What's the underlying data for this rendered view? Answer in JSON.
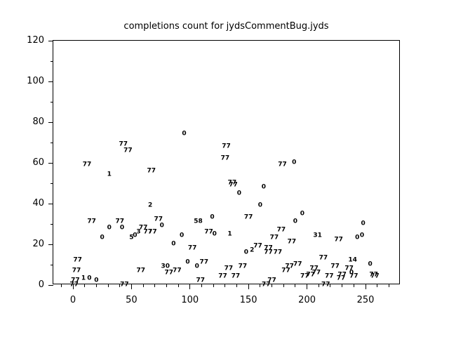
{
  "colors": {
    "background": "#ffffff",
    "foreground": "#000000"
  },
  "chart_data": {
    "type": "scatter",
    "title": "completions count for jydsCommentBug.jyds",
    "xlabel": "",
    "ylabel": "",
    "marker_style": "numeric-text-label",
    "grid": false,
    "legend": false,
    "xlim": [
      -17,
      280
    ],
    "ylim": [
      0,
      120
    ],
    "x_major_ticks": [
      0,
      50,
      100,
      150,
      200,
      250
    ],
    "x_minor_ticks": [
      -10,
      10,
      20,
      30,
      40,
      60,
      70,
      80,
      90,
      110,
      120,
      130,
      140,
      160,
      170,
      180,
      190,
      210,
      220,
      230,
      240,
      260,
      270
    ],
    "y_major_ticks": [
      0,
      20,
      40,
      60,
      80,
      100,
      120
    ],
    "y_minor_ticks": [
      10,
      30,
      50,
      70,
      90,
      110
    ],
    "points": [
      {
        "x": 43,
        "y": 69,
        "label": "77"
      },
      {
        "x": 47,
        "y": 66,
        "label": "77"
      },
      {
        "x": 12,
        "y": 59,
        "label": "77"
      },
      {
        "x": 31,
        "y": 54,
        "label": "1"
      },
      {
        "x": 67,
        "y": 56,
        "label": "77"
      },
      {
        "x": 66,
        "y": 39,
        "label": "2"
      },
      {
        "x": 16,
        "y": 31,
        "label": "77"
      },
      {
        "x": 40,
        "y": 31,
        "label": "77"
      },
      {
        "x": 31,
        "y": 28,
        "label": "0"
      },
      {
        "x": 42,
        "y": 28,
        "label": "0"
      },
      {
        "x": 73,
        "y": 32,
        "label": "77"
      },
      {
        "x": 76,
        "y": 29,
        "label": "0"
      },
      {
        "x": 60,
        "y": 28,
        "label": "77"
      },
      {
        "x": 64,
        "y": 26,
        "label": "77"
      },
      {
        "x": 68,
        "y": 26,
        "label": "77"
      },
      {
        "x": 56,
        "y": 26,
        "label": "3"
      },
      {
        "x": 53,
        "y": 24,
        "label": "0"
      },
      {
        "x": 50,
        "y": 23,
        "label": "5"
      },
      {
        "x": 25,
        "y": 23,
        "label": "0"
      },
      {
        "x": 4,
        "y": 12,
        "label": "77"
      },
      {
        "x": 3,
        "y": 7,
        "label": "77"
      },
      {
        "x": 9,
        "y": 3,
        "label": "1"
      },
      {
        "x": 14,
        "y": 3,
        "label": "0"
      },
      {
        "x": 20,
        "y": 2,
        "label": "0"
      },
      {
        "x": 2,
        "y": 2,
        "label": "77"
      },
      {
        "x": 1,
        "y": 0,
        "label": "77"
      },
      {
        "x": 44,
        "y": 0,
        "label": "77"
      },
      {
        "x": 58,
        "y": 7,
        "label": "77"
      },
      {
        "x": 79,
        "y": 9,
        "label": "30"
      },
      {
        "x": 82,
        "y": 6,
        "label": "77"
      },
      {
        "x": 95,
        "y": 74,
        "label": "0"
      },
      {
        "x": 131,
        "y": 68,
        "label": "77"
      },
      {
        "x": 130,
        "y": 62,
        "label": "77"
      },
      {
        "x": 179,
        "y": 59,
        "label": "77"
      },
      {
        "x": 189,
        "y": 60,
        "label": "0"
      },
      {
        "x": 136,
        "y": 50,
        "label": "77"
      },
      {
        "x": 137,
        "y": 49,
        "label": "77"
      },
      {
        "x": 142,
        "y": 45,
        "label": "0"
      },
      {
        "x": 163,
        "y": 48,
        "label": "0"
      },
      {
        "x": 160,
        "y": 39,
        "label": "0"
      },
      {
        "x": 119,
        "y": 33,
        "label": "0"
      },
      {
        "x": 107,
        "y": 31,
        "label": "58"
      },
      {
        "x": 150,
        "y": 33,
        "label": "77"
      },
      {
        "x": 116,
        "y": 26,
        "label": "77"
      },
      {
        "x": 121,
        "y": 25,
        "label": "0"
      },
      {
        "x": 134,
        "y": 25,
        "label": "1"
      },
      {
        "x": 93,
        "y": 24,
        "label": "0"
      },
      {
        "x": 86,
        "y": 20,
        "label": "0"
      },
      {
        "x": 102,
        "y": 18,
        "label": "77"
      },
      {
        "x": 178,
        "y": 27,
        "label": "77"
      },
      {
        "x": 172,
        "y": 23,
        "label": "77"
      },
      {
        "x": 158,
        "y": 19,
        "label": "77"
      },
      {
        "x": 153,
        "y": 17,
        "label": "2"
      },
      {
        "x": 148,
        "y": 16,
        "label": "0"
      },
      {
        "x": 167,
        "y": 18,
        "label": "77"
      },
      {
        "x": 167,
        "y": 16,
        "label": "77"
      },
      {
        "x": 175,
        "y": 16,
        "label": "77"
      },
      {
        "x": 98,
        "y": 11,
        "label": "0"
      },
      {
        "x": 112,
        "y": 11,
        "label": "77"
      },
      {
        "x": 106,
        "y": 9,
        "label": "0"
      },
      {
        "x": 133,
        "y": 8,
        "label": "77"
      },
      {
        "x": 145,
        "y": 9,
        "label": "77"
      },
      {
        "x": 89,
        "y": 7,
        "label": "77"
      },
      {
        "x": 128,
        "y": 4,
        "label": "77"
      },
      {
        "x": 139,
        "y": 4,
        "label": "77"
      },
      {
        "x": 109,
        "y": 2,
        "label": "77"
      },
      {
        "x": 170,
        "y": 2,
        "label": "77"
      },
      {
        "x": 165,
        "y": 0,
        "label": "77"
      },
      {
        "x": 196,
        "y": 35,
        "label": "0"
      },
      {
        "x": 190,
        "y": 31,
        "label": "0"
      },
      {
        "x": 248,
        "y": 30,
        "label": "0"
      },
      {
        "x": 187,
        "y": 21,
        "label": "77"
      },
      {
        "x": 209,
        "y": 24,
        "label": "31"
      },
      {
        "x": 227,
        "y": 22,
        "label": "77"
      },
      {
        "x": 243,
        "y": 23,
        "label": "0"
      },
      {
        "x": 247,
        "y": 24,
        "label": "0"
      },
      {
        "x": 214,
        "y": 13,
        "label": "77"
      },
      {
        "x": 185,
        "y": 9,
        "label": "77"
      },
      {
        "x": 192,
        "y": 10,
        "label": "77"
      },
      {
        "x": 182,
        "y": 7,
        "label": "77"
      },
      {
        "x": 198,
        "y": 4,
        "label": "77"
      },
      {
        "x": 203,
        "y": 5,
        "label": "77"
      },
      {
        "x": 208,
        "y": 6,
        "label": "77"
      },
      {
        "x": 206,
        "y": 8,
        "label": "77"
      },
      {
        "x": 239,
        "y": 12,
        "label": "14"
      },
      {
        "x": 224,
        "y": 9,
        "label": "77"
      },
      {
        "x": 236,
        "y": 8,
        "label": "77"
      },
      {
        "x": 254,
        "y": 10,
        "label": "0"
      },
      {
        "x": 219,
        "y": 4,
        "label": "77"
      },
      {
        "x": 230,
        "y": 5,
        "label": "77"
      },
      {
        "x": 238,
        "y": 6,
        "label": "0"
      },
      {
        "x": 240,
        "y": 4,
        "label": "77"
      },
      {
        "x": 229,
        "y": 3,
        "label": "77"
      },
      {
        "x": 257,
        "y": 5,
        "label": "77"
      },
      {
        "x": 258,
        "y": 4,
        "label": "77"
      },
      {
        "x": 216,
        "y": 0,
        "label": "77"
      }
    ]
  }
}
